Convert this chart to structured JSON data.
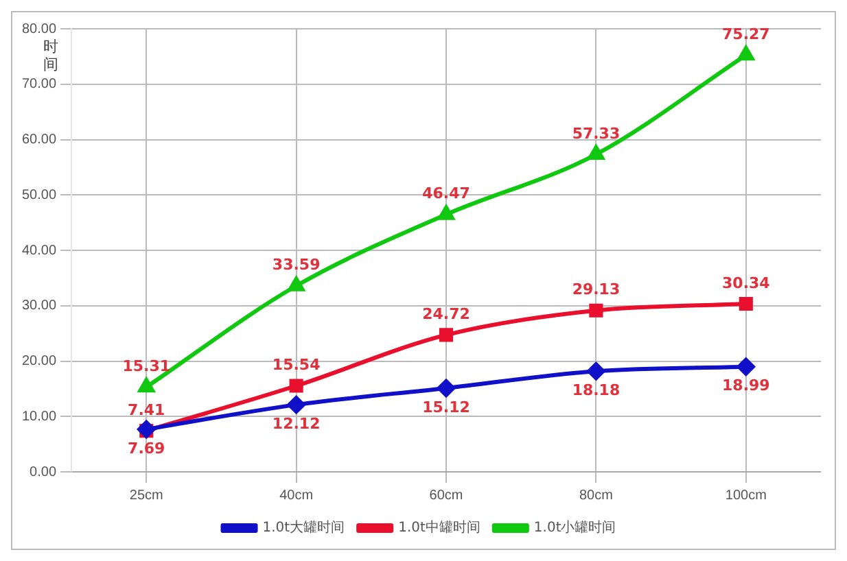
{
  "chart_data": {
    "type": "line",
    "ylabel": "时间",
    "categories": [
      "25cm",
      "40cm",
      "60cm",
      "80cm",
      "100cm"
    ],
    "series": [
      {
        "name": "1.0t大罐时间",
        "color": "#1010c8",
        "marker": "diamond",
        "values": [
          7.69,
          12.12,
          15.12,
          18.18,
          18.99
        ]
      },
      {
        "name": "1.0t中罐时间",
        "color": "#e8102c",
        "marker": "square",
        "values": [
          7.41,
          15.54,
          24.72,
          29.13,
          30.34
        ]
      },
      {
        "name": "1.0t小罐时间",
        "color": "#10c810",
        "marker": "triangle",
        "values": [
          15.31,
          33.59,
          46.47,
          57.33,
          75.27
        ]
      }
    ],
    "ylim": [
      0,
      80
    ],
    "yticks": [
      {
        "value": 0,
        "label": "0.00"
      },
      {
        "value": 10,
        "label": "10.00"
      },
      {
        "value": 20,
        "label": "20.00"
      },
      {
        "value": 30,
        "label": "30.00"
      },
      {
        "value": 40,
        "label": "40.00"
      },
      {
        "value": 50,
        "label": "50.00"
      },
      {
        "value": 60,
        "label": "60.00"
      },
      {
        "value": 70,
        "label": "70.00"
      },
      {
        "value": 80,
        "label": "80.00"
      }
    ],
    "grid": true,
    "legend": "bottom",
    "data_labels": true
  }
}
